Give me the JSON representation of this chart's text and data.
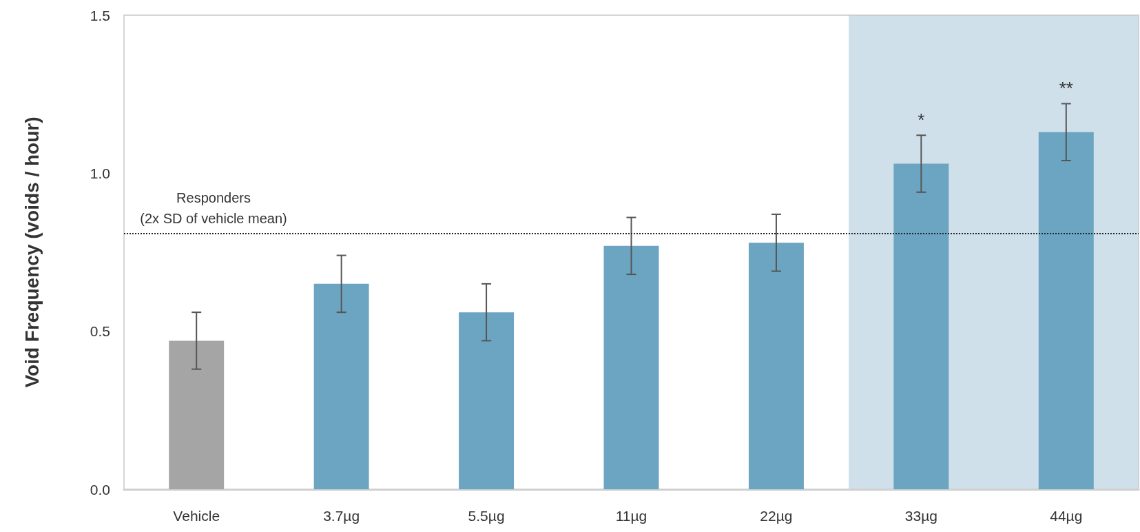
{
  "chart_data": {
    "type": "bar",
    "ylabel": "Void Frequency (voids / hour)",
    "categories": [
      "Vehicle",
      "3.7µg",
      "5.5µg",
      "11µg",
      "22µg",
      "33µg",
      "44µg"
    ],
    "values": [
      0.47,
      0.65,
      0.56,
      0.77,
      0.78,
      1.03,
      1.13
    ],
    "colors": [
      "#a5a5a5",
      "#6ca5c2",
      "#6ca5c2",
      "#6ca5c2",
      "#6ca5c2",
      "#6ca5c2",
      "#6ca5c2"
    ],
    "errors": [
      0.09,
      0.09,
      0.09,
      0.09,
      0.09,
      0.09,
      0.09
    ],
    "ylim": [
      0,
      1.5
    ],
    "yticks": [
      {
        "value": 0,
        "label": "0.0"
      },
      {
        "value": 0.5,
        "label": "0.5"
      },
      {
        "value": 1,
        "label": "1.0"
      },
      {
        "value": 1.5,
        "label": "1.5"
      }
    ],
    "grid": false,
    "ref_lines": [
      {
        "axis": "y",
        "value": 0.81,
        "label": "Responders\n(2x SD of vehicle mean)",
        "color": "#222222",
        "line_style": "dotted"
      }
    ],
    "bands": [
      {
        "axis": "x",
        "from": "33µg",
        "to": "44µg",
        "color": "#cfe0ea"
      }
    ],
    "annotations": [
      "*",
      "**"
    ]
  }
}
